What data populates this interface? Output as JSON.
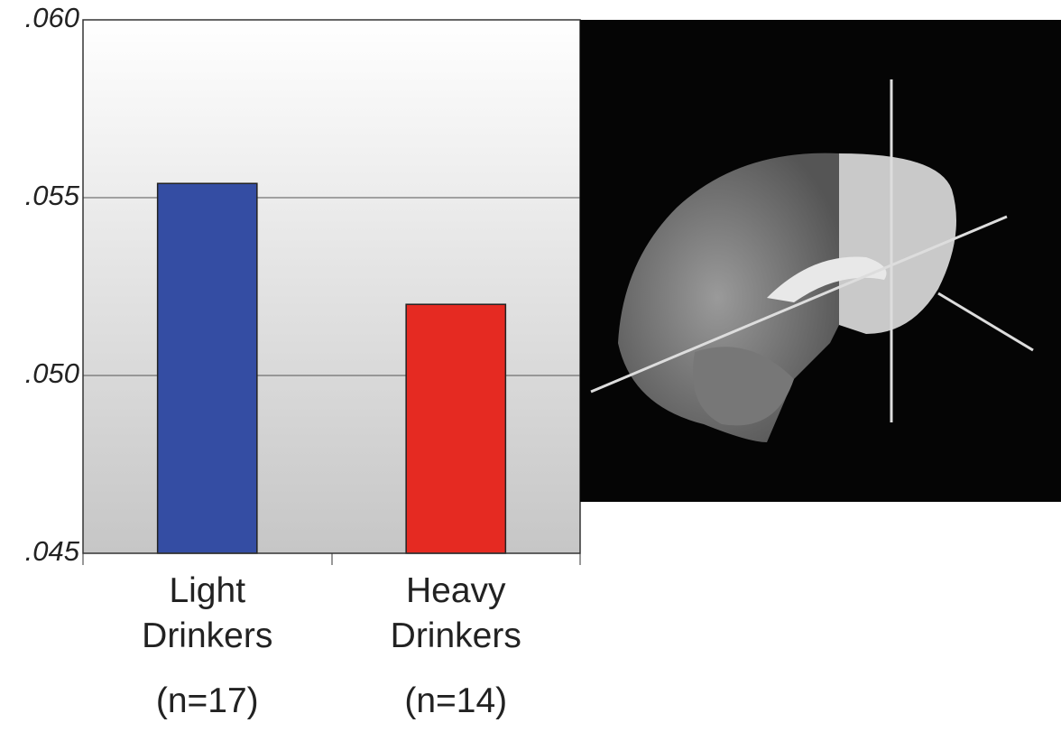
{
  "chart_data": {
    "type": "bar",
    "categories": [
      "Light Drinkers",
      "Heavy Drinkers"
    ],
    "sample_sizes": [
      "(n=17)",
      "(n=14)"
    ],
    "series": [
      {
        "colors": [
          "#344da3",
          "#e52a22"
        ],
        "values": [
          0.0554,
          0.052
        ]
      }
    ],
    "ylim": [
      0.045,
      0.06
    ],
    "yticks": [
      {
        "value": 0.045,
        "label": ".045"
      },
      {
        "value": 0.05,
        "label": ".050"
      },
      {
        "value": 0.055,
        "label": ".055"
      },
      {
        "value": 0.06,
        "label": ".060"
      }
    ],
    "grid": true
  }
}
